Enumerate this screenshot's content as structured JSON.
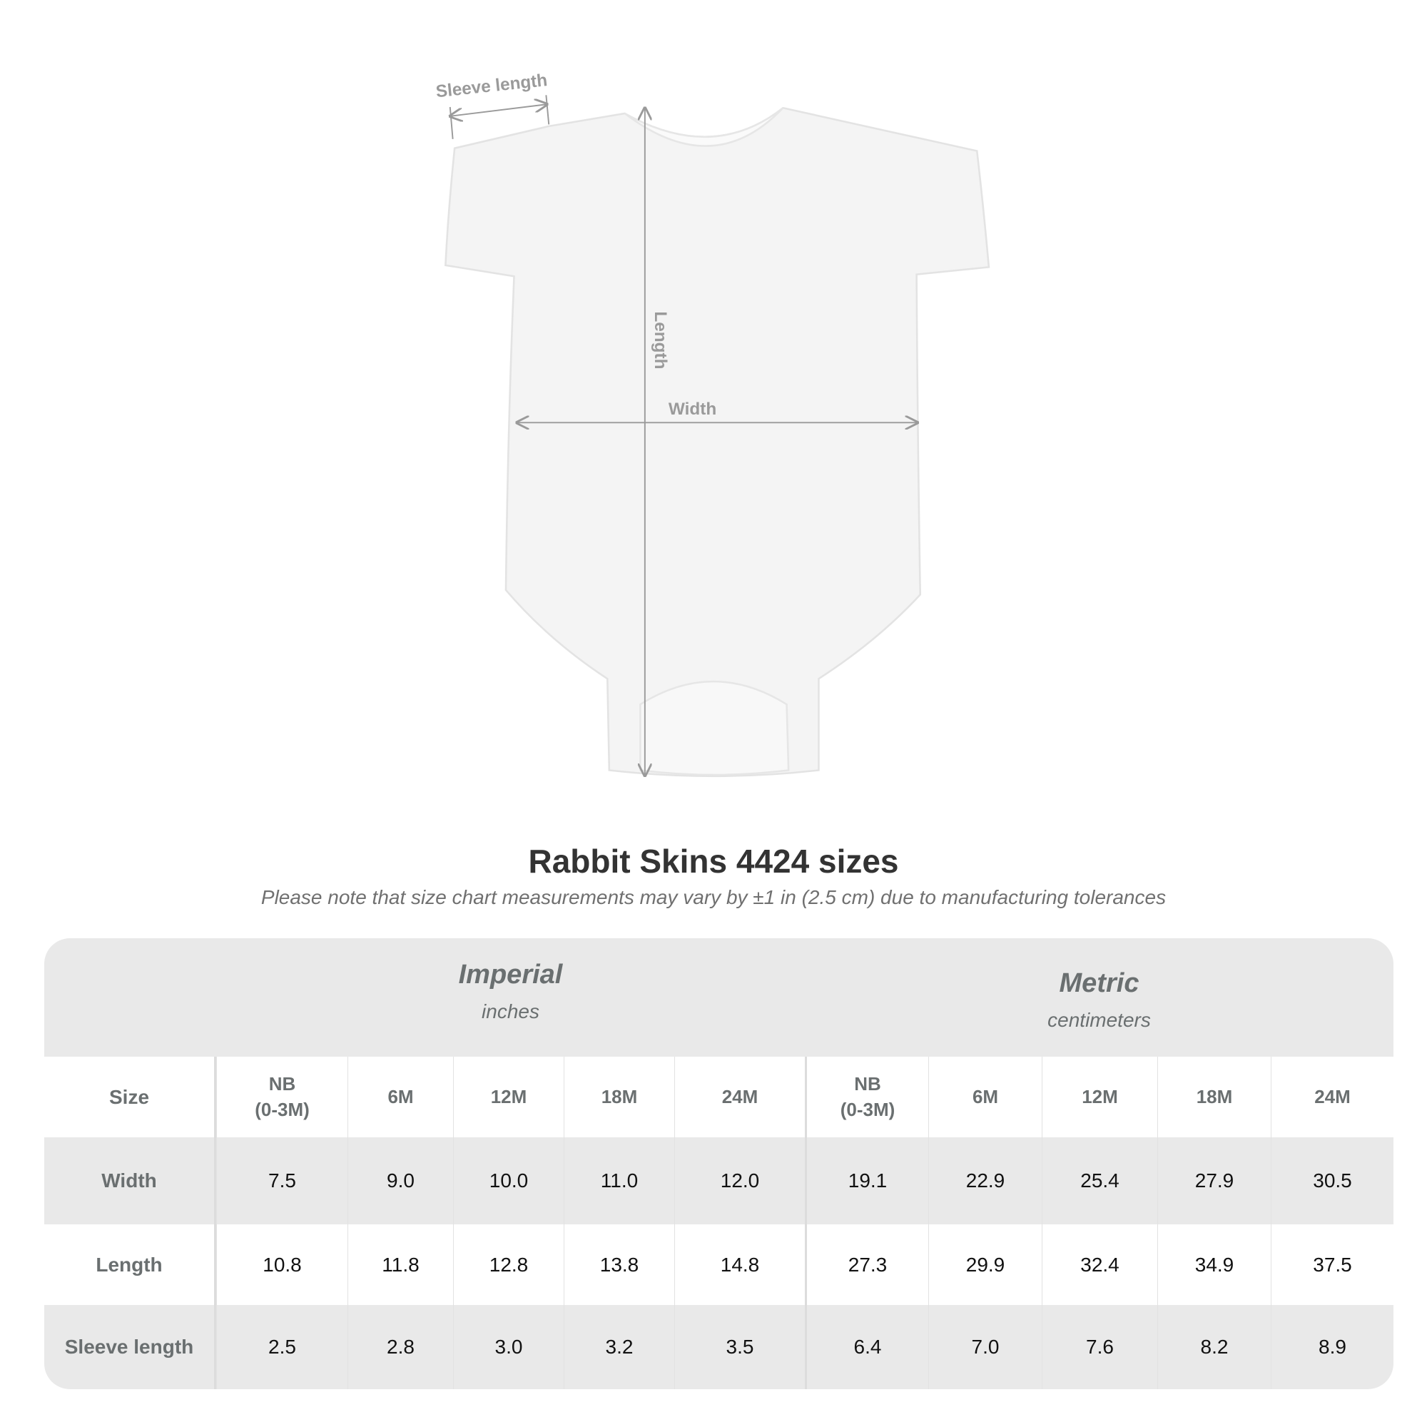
{
  "diagram": {
    "labels": {
      "sleeve": "Sleeve length",
      "length": "Length",
      "width": "Width"
    },
    "colors": {
      "garment": "#f5f5f5",
      "measure": "#9a9a9a"
    }
  },
  "header": {
    "title": "Rabbit Skins 4424 sizes",
    "note": "Please note that size chart measurements may vary by ±1 in (2.5 cm) due to manufacturing tolerances"
  },
  "table": {
    "imperial": {
      "name": "Imperial",
      "unit": "inches"
    },
    "metric": {
      "name": "Metric",
      "unit": "centimeters"
    },
    "size_label": "Size",
    "sizes": [
      "NB\n(0-3M)",
      "6M",
      "12M",
      "18M",
      "24M"
    ],
    "rows": [
      {
        "label": "Width",
        "imperial": [
          "7.5",
          "9.0",
          "10.0",
          "11.0",
          "12.0"
        ],
        "metric": [
          "19.1",
          "22.9",
          "25.4",
          "27.9",
          "30.5"
        ]
      },
      {
        "label": "Length",
        "imperial": [
          "10.8",
          "11.8",
          "12.8",
          "13.8",
          "14.8"
        ],
        "metric": [
          "27.3",
          "29.9",
          "32.4",
          "34.9",
          "37.5"
        ]
      },
      {
        "label": "Sleeve length",
        "imperial": [
          "2.5",
          "2.8",
          "3.0",
          "3.2",
          "3.5"
        ],
        "metric": [
          "6.4",
          "7.0",
          "7.6",
          "8.2",
          "8.9"
        ]
      }
    ]
  }
}
